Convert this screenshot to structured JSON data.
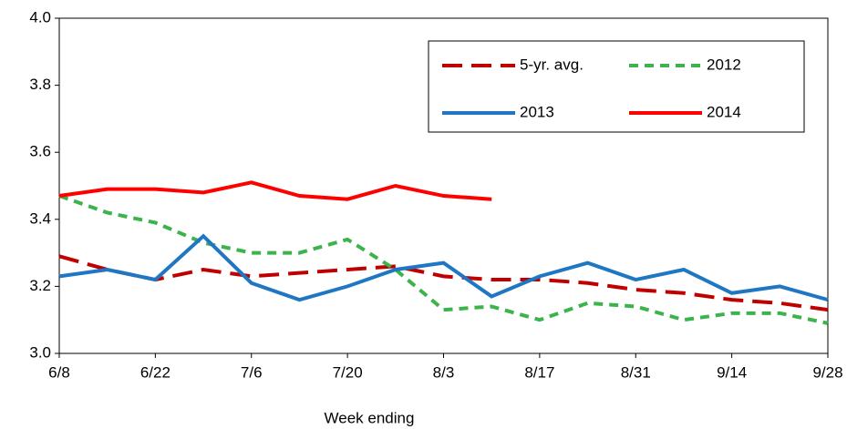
{
  "chart_data": {
    "type": "line",
    "x_label": "Week ending",
    "categories": [
      "6/8",
      null,
      "6/22",
      null,
      "7/6",
      null,
      "7/20",
      null,
      "8/3",
      null,
      "8/17",
      null,
      "8/31",
      null,
      "9/14",
      null,
      "9/28"
    ],
    "ylim": [
      3.0,
      4.0
    ],
    "yticks": [
      {
        "value": 3.0,
        "label": "3.0"
      },
      3.2,
      3.4,
      3.6,
      3.8,
      {
        "value": 4.0,
        "label": "4.0"
      }
    ],
    "grid": false,
    "legend": "upper right",
    "series": [
      {
        "name": "5-yr. avg.",
        "color": "#c00000",
        "line_style": "long-dash",
        "values": [
          3.29,
          3.25,
          3.22,
          3.25,
          3.23,
          3.24,
          3.25,
          3.26,
          3.23,
          3.22,
          3.22,
          3.21,
          3.19,
          3.18,
          3.16,
          3.15,
          3.13
        ]
      },
      {
        "name": "2012",
        "color": "#3cb44b",
        "line_style": "dash",
        "values": [
          3.47,
          3.42,
          3.39,
          3.33,
          3.3,
          3.3,
          3.34,
          3.25,
          3.13,
          3.14,
          3.1,
          3.15,
          3.14,
          3.1,
          3.12,
          3.12,
          3.09
        ]
      },
      {
        "name": "2013",
        "color": "#1f77c4",
        "line_style": "solid",
        "values": [
          3.23,
          3.25,
          3.22,
          3.35,
          3.21,
          3.16,
          3.2,
          3.25,
          3.27,
          3.17,
          3.23,
          3.27,
          3.22,
          3.25,
          3.18,
          3.2,
          3.16
        ]
      },
      {
        "name": "2014",
        "color": "#ff0000",
        "line_style": "solid",
        "values": [
          3.47,
          3.49,
          3.49,
          3.48,
          3.51,
          3.47,
          3.46,
          3.5,
          3.47,
          3.46,
          null,
          null,
          null,
          null,
          null,
          null,
          null
        ]
      }
    ]
  }
}
